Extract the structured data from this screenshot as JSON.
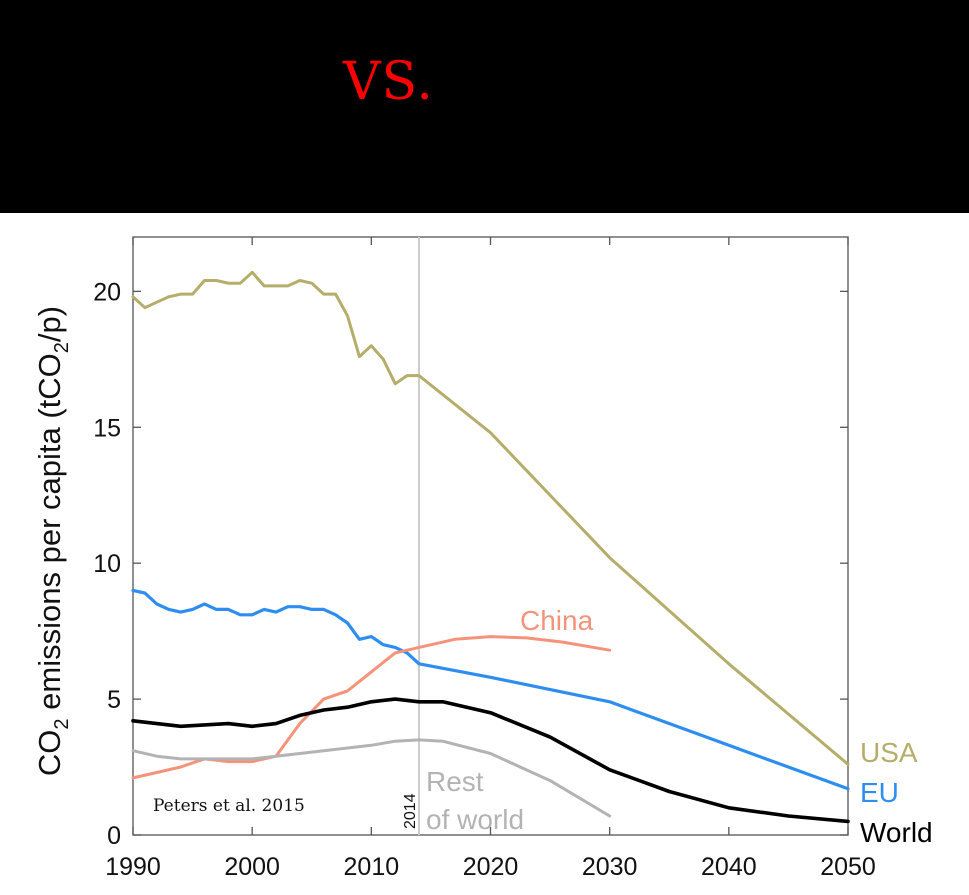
{
  "banner": {
    "text": "VS."
  },
  "colors": {
    "USA": "#b5ad6a",
    "EU": "#2e8ef0",
    "World": "#000000",
    "China": "#f4937a",
    "Rest of world": "#b3b3b3",
    "marker": "#cccccc",
    "banner_text": "#ff0000"
  },
  "chart_data": {
    "type": "line",
    "title": "",
    "xlabel": "",
    "ylabel_parts": [
      "CO",
      "2",
      " emissions per capita (tCO",
      "2",
      "/p)"
    ],
    "xlim": [
      1990,
      2050
    ],
    "ylim": [
      0,
      22
    ],
    "x_ticks": [
      1990,
      2000,
      2010,
      2020,
      2030,
      2040,
      2050
    ],
    "y_ticks": [
      0,
      5,
      10,
      15,
      20
    ],
    "grid": false,
    "marker_year": 2014,
    "marker_label": "2014",
    "source_note": "Peters et al. 2015",
    "series": [
      {
        "name": "USA",
        "label_lines": [
          "USA"
        ],
        "x": [
          1990,
          1991,
          1992,
          1993,
          1994,
          1995,
          1996,
          1997,
          1998,
          1999,
          2000,
          2001,
          2002,
          2003,
          2004,
          2005,
          2006,
          2007,
          2008,
          2009,
          2010,
          2011,
          2012,
          2013,
          2014,
          2020,
          2030,
          2040,
          2050
        ],
        "y": [
          19.8,
          19.4,
          19.6,
          19.8,
          19.9,
          19.9,
          20.4,
          20.4,
          20.3,
          20.3,
          20.7,
          20.2,
          20.2,
          20.2,
          20.4,
          20.3,
          19.9,
          19.9,
          19.1,
          17.6,
          18.0,
          17.5,
          16.6,
          16.9,
          16.9,
          14.8,
          10.2,
          6.3,
          2.6
        ]
      },
      {
        "name": "EU",
        "label_lines": [
          "EU"
        ],
        "x": [
          1990,
          1991,
          1992,
          1993,
          1994,
          1995,
          1996,
          1997,
          1998,
          1999,
          2000,
          2001,
          2002,
          2003,
          2004,
          2005,
          2006,
          2007,
          2008,
          2009,
          2010,
          2011,
          2012,
          2013,
          2014,
          2020,
          2030,
          2040,
          2050
        ],
        "y": [
          9.0,
          8.9,
          8.5,
          8.3,
          8.2,
          8.3,
          8.5,
          8.3,
          8.3,
          8.1,
          8.1,
          8.3,
          8.2,
          8.4,
          8.4,
          8.3,
          8.3,
          8.1,
          7.8,
          7.2,
          7.3,
          7.0,
          6.9,
          6.7,
          6.3,
          5.8,
          4.9,
          3.3,
          1.7
        ]
      },
      {
        "name": "China",
        "label_lines": [
          "China"
        ],
        "x": [
          1990,
          1992,
          1994,
          1996,
          1998,
          2000,
          2002,
          2004,
          2006,
          2008,
          2010,
          2012,
          2014,
          2017,
          2020,
          2023,
          2026,
          2030
        ],
        "y": [
          2.1,
          2.3,
          2.5,
          2.8,
          2.7,
          2.7,
          2.9,
          4.1,
          5.0,
          5.3,
          6.0,
          6.7,
          6.9,
          7.2,
          7.3,
          7.25,
          7.1,
          6.8
        ]
      },
      {
        "name": "World",
        "label_lines": [
          "World"
        ],
        "x": [
          1990,
          1992,
          1994,
          1996,
          1998,
          2000,
          2002,
          2004,
          2006,
          2008,
          2010,
          2012,
          2014,
          2016,
          2020,
          2025,
          2030,
          2035,
          2040,
          2045,
          2050
        ],
        "y": [
          4.2,
          4.1,
          4.0,
          4.05,
          4.1,
          4.0,
          4.1,
          4.4,
          4.6,
          4.7,
          4.9,
          5.0,
          4.9,
          4.9,
          4.5,
          3.6,
          2.4,
          1.6,
          1.0,
          0.7,
          0.5
        ]
      },
      {
        "name": "Rest of world",
        "label_lines": [
          "Rest",
          "of world"
        ],
        "x": [
          1990,
          1992,
          1994,
          1996,
          1998,
          2000,
          2002,
          2004,
          2006,
          2008,
          2010,
          2012,
          2014,
          2016,
          2020,
          2025,
          2030
        ],
        "y": [
          3.1,
          2.9,
          2.8,
          2.8,
          2.8,
          2.8,
          2.9,
          3.0,
          3.1,
          3.2,
          3.3,
          3.45,
          3.5,
          3.45,
          3.0,
          2.0,
          0.7
        ]
      }
    ]
  }
}
